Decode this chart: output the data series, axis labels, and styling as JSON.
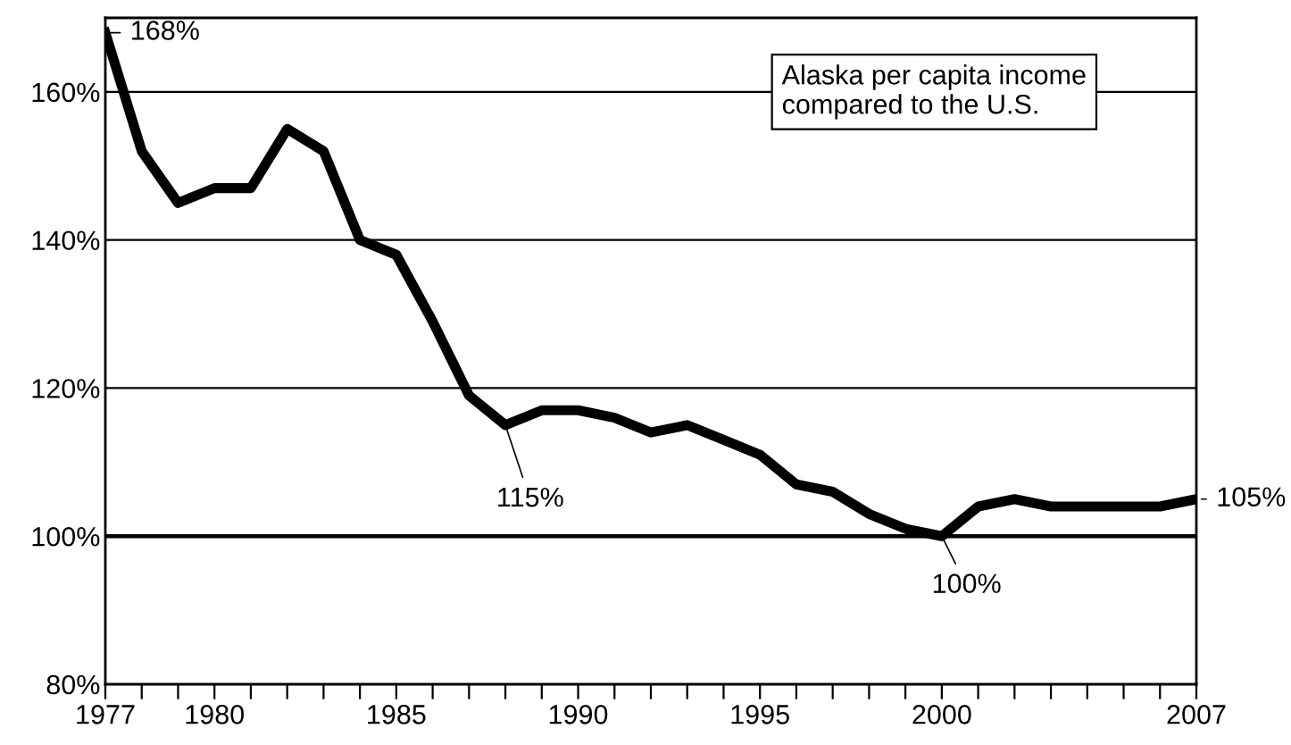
{
  "chart_data": {
    "type": "line",
    "title": "Alaska per capita income\ncompared to the U.S.",
    "x": [
      1977,
      1978,
      1979,
      1980,
      1981,
      1982,
      1983,
      1984,
      1985,
      1986,
      1987,
      1988,
      1989,
      1990,
      1991,
      1992,
      1993,
      1994,
      1995,
      1996,
      1997,
      1998,
      1999,
      2000,
      2001,
      2002,
      2003,
      2004,
      2005,
      2006,
      2007
    ],
    "series": [
      {
        "color": "#000000",
        "values": [
          168,
          152,
          145,
          147,
          147,
          155,
          152,
          140,
          138,
          129,
          119,
          115,
          117,
          117,
          116,
          114,
          115,
          113,
          111,
          107,
          106,
          103,
          101,
          100,
          104,
          105,
          104,
          104,
          104,
          104,
          105
        ]
      }
    ],
    "xlim": [
      1977,
      2007
    ],
    "xticks": [
      1977,
      {
        "value": 1978,
        "label": null
      },
      {
        "value": 1979,
        "label": null
      },
      1980,
      {
        "value": 1981,
        "label": null
      },
      {
        "value": 1982,
        "label": null
      },
      {
        "value": 1983,
        "label": null
      },
      {
        "value": 1984,
        "label": null
      },
      1985,
      {
        "value": 1986,
        "label": null
      },
      {
        "value": 1987,
        "label": null
      },
      {
        "value": 1988,
        "label": null
      },
      {
        "value": 1989,
        "label": null
      },
      1990,
      {
        "value": 1991,
        "label": null
      },
      {
        "value": 1992,
        "label": null
      },
      {
        "value": 1993,
        "label": null
      },
      {
        "value": 1994,
        "label": null
      },
      1995,
      {
        "value": 1996,
        "label": null
      },
      {
        "value": 1997,
        "label": null
      },
      {
        "value": 1998,
        "label": null
      },
      {
        "value": 1999,
        "label": null
      },
      2000,
      {
        "value": 2001,
        "label": null
      },
      {
        "value": 2002,
        "label": null
      },
      {
        "value": 2003,
        "label": null
      },
      {
        "value": 2004,
        "label": null
      },
      {
        "value": 2005,
        "label": null
      },
      {
        "value": 2006,
        "label": null
      },
      2007
    ],
    "ylim": [
      80,
      170
    ],
    "yticks": [
      {
        "value": 80,
        "label": "80%"
      },
      {
        "value": 100,
        "label": "100%"
      },
      {
        "value": 120,
        "label": "120%"
      },
      {
        "value": 140,
        "label": "140%"
      },
      {
        "value": 160,
        "label": "160%"
      }
    ],
    "grid": "y",
    "ref_lines": [
      {
        "axis": "y",
        "value": 100,
        "label": null,
        "color": "#000000"
      }
    ],
    "annotations": [
      {
        "text": "168%",
        "x": 1977,
        "y": 168
      },
      {
        "text": "115%",
        "x": 1988,
        "y": 115
      },
      {
        "text": "100%",
        "x": 2000,
        "y": 100
      },
      {
        "text": "105%",
        "x": 2007,
        "y": 105
      }
    ],
    "line_style": "solid",
    "marker": "none",
    "legend": false
  }
}
